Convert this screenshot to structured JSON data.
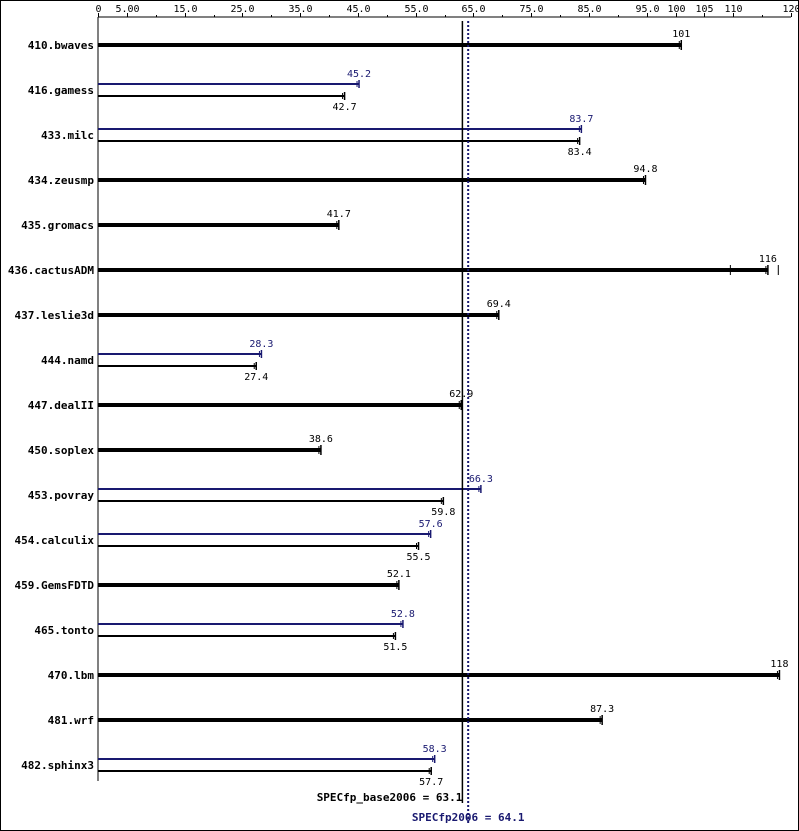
{
  "chart_data": {
    "type": "bar",
    "x_ticks": [
      "0",
      "5.00",
      "15.0",
      "25.0",
      "35.0",
      "45.0",
      "55.0",
      "65.0",
      "75.0",
      "85.0",
      "95.0",
      "100",
      "105",
      "110",
      "120"
    ],
    "x_tick_values": [
      0,
      5,
      15,
      25,
      35,
      45,
      55,
      65,
      75,
      85,
      95,
      100,
      105,
      110,
      120
    ],
    "xlim": [
      0,
      120
    ],
    "benchmarks": [
      {
        "name": "410.bwaves",
        "base": 101,
        "base_label": "101"
      },
      {
        "name": "416.gamess",
        "peak": 45.2,
        "peak_label": "45.2",
        "base": 42.7,
        "base_label": "42.7"
      },
      {
        "name": "433.milc",
        "peak": 83.7,
        "peak_label": "83.7",
        "base": 83.4,
        "base_label": "83.4"
      },
      {
        "name": "434.zeusmp",
        "base": 94.8,
        "base_label": "94.8"
      },
      {
        "name": "435.gromacs",
        "base": 41.7,
        "base_label": "41.7"
      },
      {
        "name": "436.cactusADM",
        "base": 116,
        "base_label": "116"
      },
      {
        "name": "437.leslie3d",
        "base": 69.4,
        "base_label": "69.4"
      },
      {
        "name": "444.namd",
        "peak": 28.3,
        "peak_label": "28.3",
        "base": 27.4,
        "base_label": "27.4"
      },
      {
        "name": "447.dealII",
        "base": 62.9,
        "base_label": "62.9"
      },
      {
        "name": "450.soplex",
        "base": 38.6,
        "base_label": "38.6"
      },
      {
        "name": "453.povray",
        "peak": 66.3,
        "peak_label": "66.3",
        "base": 59.8,
        "base_label": "59.8"
      },
      {
        "name": "454.calculix",
        "peak": 57.6,
        "peak_label": "57.6",
        "base": 55.5,
        "base_label": "55.5"
      },
      {
        "name": "459.GemsFDTD",
        "base": 52.1,
        "base_label": "52.1"
      },
      {
        "name": "465.tonto",
        "peak": 52.8,
        "peak_label": "52.8",
        "base": 51.5,
        "base_label": "51.5"
      },
      {
        "name": "470.lbm",
        "base": 118,
        "base_label": "118"
      },
      {
        "name": "481.wrf",
        "base": 87.3,
        "base_label": "87.3"
      },
      {
        "name": "482.sphinx3",
        "peak": 58.3,
        "peak_label": "58.3",
        "base": 57.7,
        "base_label": "57.7"
      }
    ],
    "reference_lines": {
      "base": {
        "value": 63.1,
        "label": "SPECfp_base2006 = 63.1"
      },
      "peak": {
        "value": 64.1,
        "label": "SPECfp2006 = 64.1"
      }
    },
    "colors": {
      "base": "#000000",
      "peak": "#191970"
    }
  }
}
